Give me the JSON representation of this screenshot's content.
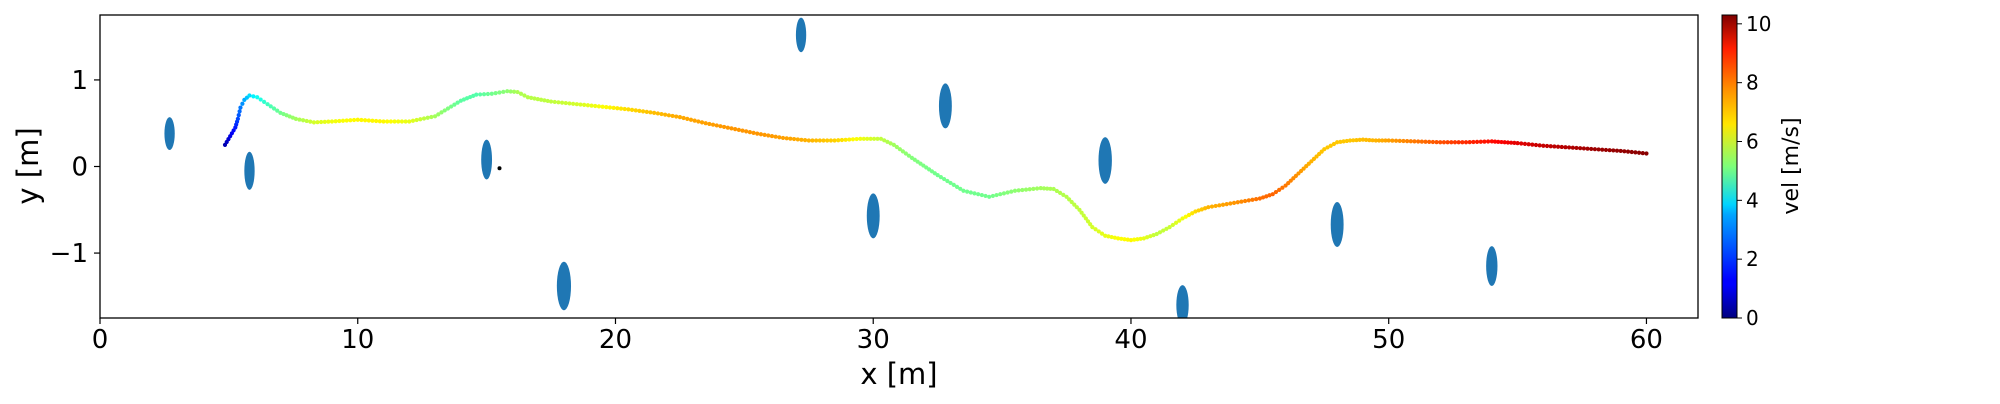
{
  "chart_data": {
    "type": "scatter",
    "title": "",
    "xlabel": "x [m]",
    "ylabel": "y [m]",
    "xlim": [
      0,
      62
    ],
    "ylim": [
      -1.75,
      1.75
    ],
    "xticks": [
      0,
      10,
      20,
      30,
      40,
      50,
      60
    ],
    "yticks": [
      -1,
      0,
      1
    ],
    "grid": false,
    "colorbar": {
      "label": "vel [m/s]",
      "min": 0,
      "max": 10.3,
      "ticks": [
        0,
        2,
        4,
        6,
        8,
        10
      ],
      "colormap": "jet"
    },
    "obstacles": {
      "color": "#1f77b4",
      "items": [
        {
          "x": 2.7,
          "y": 0.38,
          "w": 0.4,
          "h": 0.38
        },
        {
          "x": 5.8,
          "y": -0.05,
          "w": 0.4,
          "h": 0.44
        },
        {
          "x": 15.0,
          "y": 0.08,
          "w": 0.42,
          "h": 0.46
        },
        {
          "x": 18.0,
          "y": -1.38,
          "w": 0.55,
          "h": 0.56
        },
        {
          "x": 27.2,
          "y": 1.52,
          "w": 0.4,
          "h": 0.4
        },
        {
          "x": 30.0,
          "y": -0.57,
          "w": 0.5,
          "h": 0.52
        },
        {
          "x": 32.8,
          "y": 0.7,
          "w": 0.5,
          "h": 0.52
        },
        {
          "x": 39.0,
          "y": 0.07,
          "w": 0.52,
          "h": 0.54
        },
        {
          "x": 42.0,
          "y": -1.6,
          "w": 0.48,
          "h": 0.46
        },
        {
          "x": 48.0,
          "y": -0.67,
          "w": 0.5,
          "h": 0.52
        },
        {
          "x": 54.0,
          "y": -1.15,
          "w": 0.44,
          "h": 0.46
        }
      ]
    },
    "marker": {
      "x": 15.5,
      "y": -0.02,
      "color": "#000000"
    },
    "trajectory": {
      "knots_x": [
        4.85,
        5.05,
        5.25,
        5.35,
        5.45,
        5.6,
        5.8,
        6.1,
        6.5,
        7.0,
        7.6,
        8.3,
        9.0,
        10.0,
        11.0,
        12.0,
        13.0,
        14.0,
        14.6,
        15.2,
        15.8,
        16.2,
        16.6,
        17.5,
        18.5,
        19.5,
        20.5,
        21.5,
        22.5,
        23.5,
        24.5,
        25.5,
        26.5,
        27.5,
        28.5,
        29.5,
        30.3,
        30.8,
        31.5,
        32.5,
        33.5,
        34.5,
        35.5,
        36.5,
        37.0,
        37.5,
        38.0,
        38.5,
        39.0,
        39.5,
        40.0,
        40.5,
        41.0,
        41.5,
        42.0,
        42.5,
        43.0,
        44.0,
        45.0,
        45.5,
        46.0,
        46.5,
        47.0,
        47.5,
        48.0,
        48.5,
        49.0,
        49.5,
        50.0,
        51.0,
        52.0,
        53.0,
        54.0,
        54.5,
        55.0,
        56.0,
        57.0,
        58.0,
        59.0,
        60.0
      ],
      "knots_y": [
        0.25,
        0.35,
        0.45,
        0.55,
        0.68,
        0.77,
        0.82,
        0.8,
        0.72,
        0.62,
        0.55,
        0.51,
        0.52,
        0.54,
        0.52,
        0.52,
        0.58,
        0.76,
        0.83,
        0.84,
        0.87,
        0.86,
        0.8,
        0.75,
        0.72,
        0.69,
        0.66,
        0.62,
        0.57,
        0.5,
        0.44,
        0.38,
        0.33,
        0.3,
        0.3,
        0.32,
        0.32,
        0.25,
        0.1,
        -0.1,
        -0.28,
        -0.35,
        -0.28,
        -0.25,
        -0.26,
        -0.35,
        -0.5,
        -0.7,
        -0.8,
        -0.83,
        -0.85,
        -0.83,
        -0.78,
        -0.7,
        -0.6,
        -0.52,
        -0.47,
        -0.42,
        -0.37,
        -0.32,
        -0.22,
        -0.08,
        0.06,
        0.2,
        0.28,
        0.3,
        0.31,
        0.3,
        0.3,
        0.29,
        0.28,
        0.28,
        0.29,
        0.28,
        0.27,
        0.24,
        0.22,
        0.2,
        0.18,
        0.15
      ],
      "knots_vel": [
        0.5,
        1.0,
        1.5,
        2.0,
        2.5,
        3.0,
        3.5,
        4.0,
        4.5,
        5.0,
        5.5,
        6.0,
        6.3,
        6.5,
        6.5,
        6.2,
        5.5,
        4.8,
        4.7,
        5.0,
        5.3,
        5.6,
        5.7,
        5.8,
        6.0,
        6.4,
        6.8,
        7.1,
        7.3,
        7.4,
        7.5,
        7.5,
        7.4,
        7.2,
        6.9,
        6.3,
        5.8,
        5.5,
        5.2,
        5.0,
        5.0,
        5.0,
        5.3,
        5.5,
        5.6,
        5.7,
        5.8,
        6.0,
        6.2,
        6.4,
        6.5,
        6.2,
        5.8,
        5.9,
        6.3,
        6.8,
        7.2,
        7.5,
        7.9,
        8.0,
        7.8,
        7.5,
        7.2,
        7.0,
        7.0,
        7.0,
        7.1,
        7.2,
        7.4,
        7.8,
        8.2,
        8.6,
        8.9,
        9.1,
        9.3,
        9.6,
        9.8,
        10.0,
        10.1,
        10.2
      ]
    }
  }
}
